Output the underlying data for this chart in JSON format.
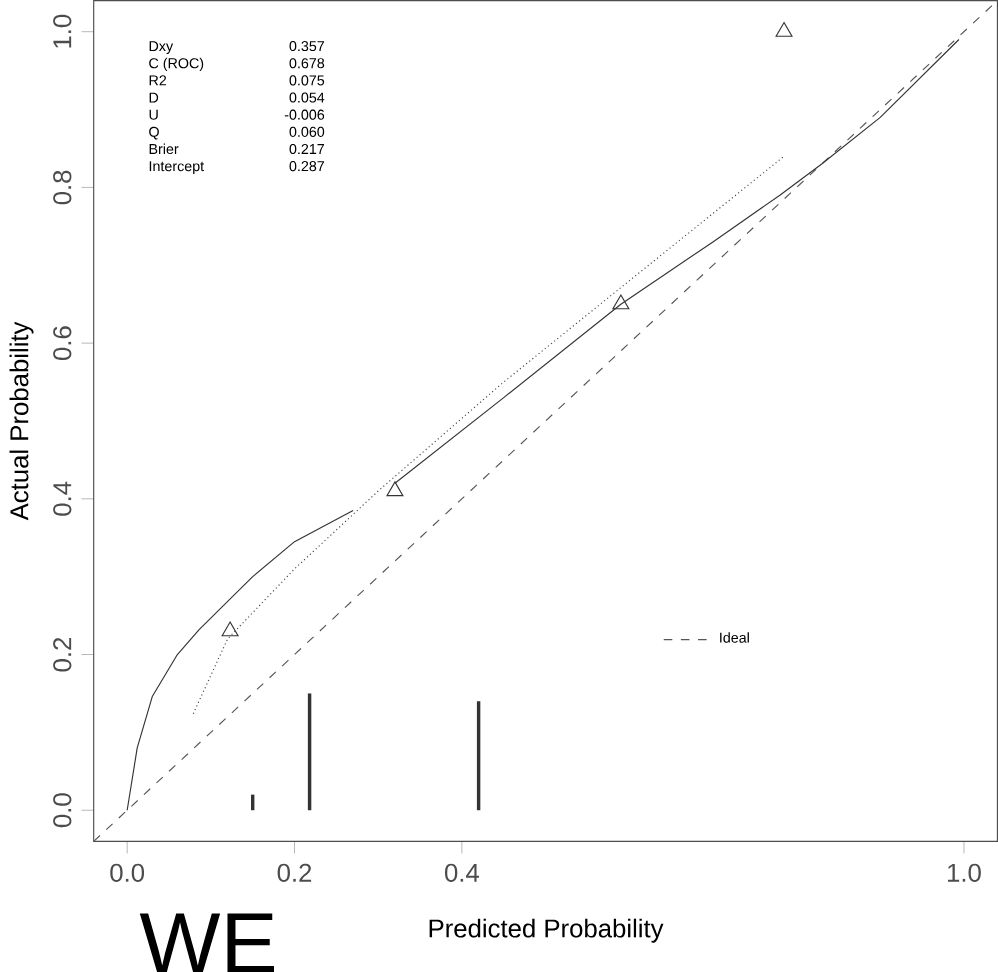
{
  "chart_data": {
    "type": "line",
    "xlabel": "Predicted Probability",
    "ylabel": "Actual Probability",
    "xlim": [
      -0.04,
      1.04
    ],
    "ylim": [
      -0.04,
      1.04
    ],
    "xticks": [
      {
        "value": 0,
        "label": "0.0"
      },
      {
        "value": 0.2,
        "label": "0.2"
      },
      {
        "value": 0.4,
        "label": "0.4"
      },
      {
        "value": 1.0,
        "label": "1.0"
      }
    ],
    "yticks": [
      {
        "value": 0,
        "label": "0.0"
      },
      {
        "value": 0.2,
        "label": "0.2"
      },
      {
        "value": 0.4,
        "label": "0.4"
      },
      {
        "value": 0.6,
        "label": "0.6"
      },
      {
        "value": 0.8,
        "label": "0.8"
      },
      {
        "value": 1.0,
        "label": "1.0"
      }
    ],
    "grid": false,
    "legend": "right",
    "series": [
      {
        "name": "Ideal",
        "line_style": "dashed",
        "marker": "none",
        "color": "#555555",
        "x": [
          -0.04,
          1.04
        ],
        "values": [
          -0.04,
          1.04
        ]
      },
      {
        "line_style": "solid",
        "marker": "none",
        "color": "#333333",
        "x": [
          0,
          0.012,
          0.03,
          0.06,
          0.086,
          0.15,
          0.2,
          0.27,
          0.3,
          0.32,
          0.45,
          0.59,
          0.7,
          0.78,
          0.83,
          0.9,
          0.994
        ],
        "values": [
          0,
          0.08,
          0.146,
          0.2,
          0.232,
          0.3,
          0.345,
          0.385,
          null,
          0.42,
          0.53,
          0.65,
          0.73,
          0.79,
          0.83,
          0.89,
          0.99
        ]
      },
      {
        "line_style": "dotted",
        "marker": "none",
        "color": "#444444",
        "x": [
          0.079,
          0.12,
          0.2,
          0.3,
          0.45,
          0.6,
          0.785
        ],
        "values": [
          0.124,
          0.22,
          0.31,
          0.41,
          0.55,
          0.68,
          0.84
        ]
      },
      {
        "type": "scatter",
        "marker": "triangle",
        "color": "#333333",
        "x": [
          0.123,
          0.32,
          0.59,
          0.785
        ],
        "values": [
          0.23,
          0.41,
          0.65,
          1.0
        ]
      },
      {
        "type": "bar",
        "marker": "none",
        "color": "#333333",
        "x": [
          0.15,
          0.218,
          0.42
        ],
        "values": [
          0.02,
          0.15,
          0.14
        ]
      }
    ],
    "annotations": [
      "Dxy",
      "0.357",
      "C (ROC)",
      "0.678",
      "R2",
      "0.075",
      "D",
      "0.054",
      "U",
      "-0.006",
      "Q",
      "0.060",
      "Brier",
      "0.217",
      "Intercept",
      "0.287",
      "WE"
    ]
  }
}
